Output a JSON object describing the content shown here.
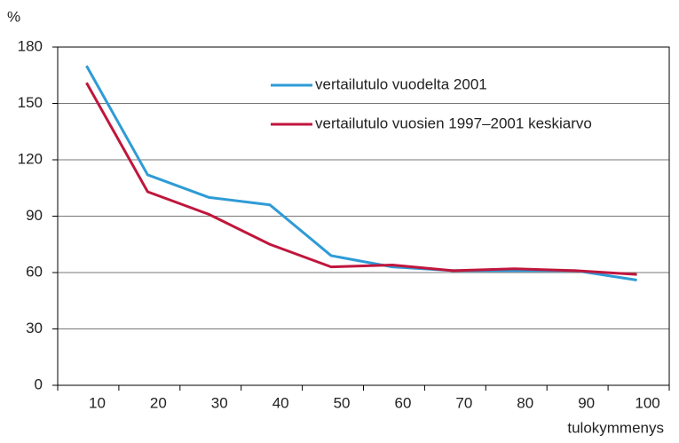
{
  "chart_data": {
    "type": "line",
    "y_label": "%",
    "x_label": "tulokymmenys",
    "categories": [
      "10",
      "20",
      "30",
      "40",
      "50",
      "60",
      "70",
      "80",
      "90",
      "100"
    ],
    "series": [
      {
        "name": "vertailutulo vuodelta 2001",
        "color": "#2e9bd6",
        "values": [
          170,
          112,
          100,
          96,
          69,
          63,
          61,
          61,
          61,
          56
        ]
      },
      {
        "name": "vertailutulo vuosien 1997–2001 keskiarvo",
        "color": "#c0163c",
        "values": [
          161,
          103,
          91,
          75,
          63,
          64,
          61,
          62,
          61,
          59
        ]
      }
    ],
    "ylim": [
      0,
      180
    ],
    "yticks": [
      0,
      30,
      60,
      90,
      120,
      150,
      180
    ],
    "grid": true
  }
}
